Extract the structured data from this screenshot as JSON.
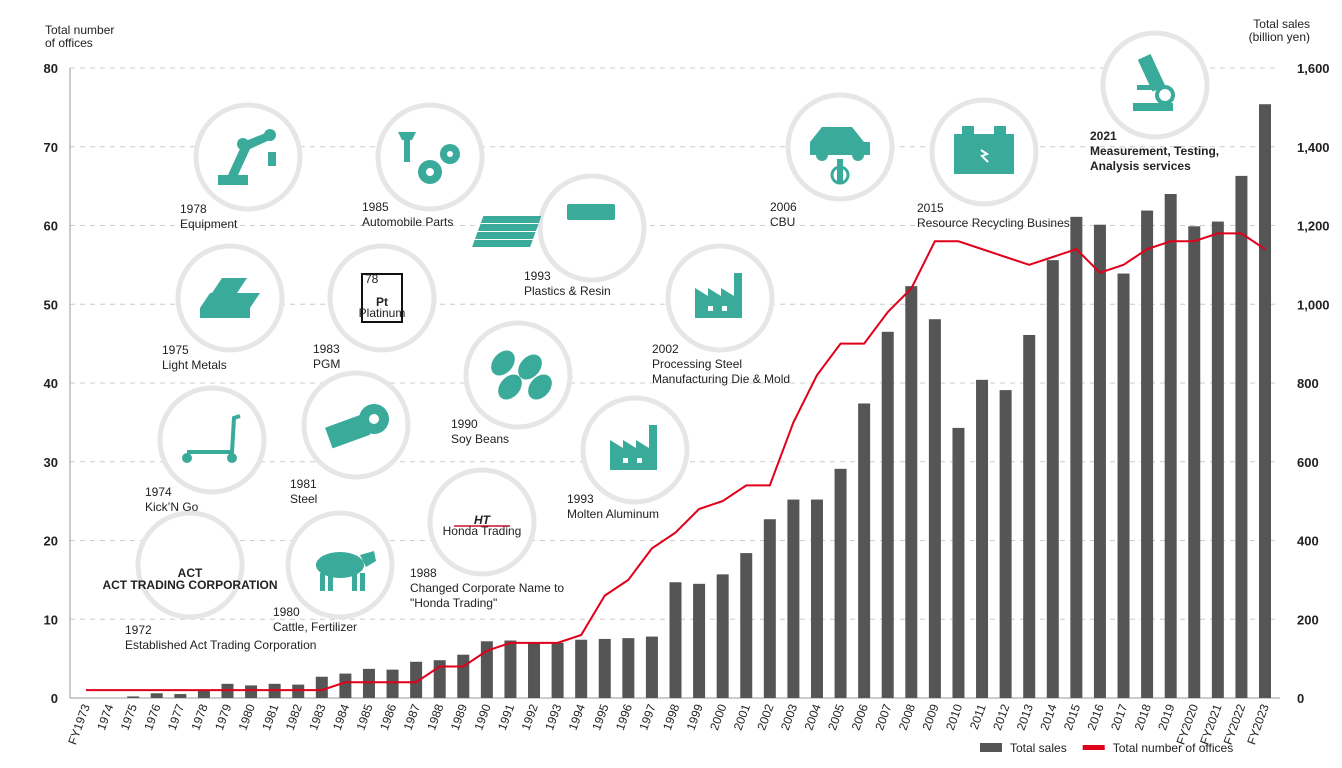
{
  "chart_data": {
    "type": "bar-line",
    "y_label": [
      "Total number",
      "of offices"
    ],
    "y2_label": [
      "Total sales",
      "(billion yen)"
    ],
    "categories": [
      "FY1973",
      "1974",
      "1975",
      "1976",
      "1977",
      "1978",
      "1979",
      "1980",
      "1981",
      "1982",
      "1983",
      "1984",
      "1985",
      "1986",
      "1987",
      "1988",
      "1989",
      "1990",
      "1991",
      "1992",
      "1993",
      "1994",
      "1995",
      "1996",
      "1997",
      "1998",
      "1999",
      "2000",
      "2001",
      "2002",
      "2003",
      "2004",
      "2005",
      "2006",
      "2007",
      "2008",
      "2009",
      "2010",
      "2011",
      "2012",
      "2013",
      "2014",
      "2015",
      "2016",
      "2017",
      "2018",
      "2019",
      "FY2020",
      "FY2021",
      "FY2022",
      "FY2023"
    ],
    "series": [
      {
        "name": "Total sales",
        "color": "#555555",
        "type": "bar",
        "axis": "y2",
        "values": [
          0,
          0,
          4,
          12,
          10,
          18,
          36,
          32,
          36,
          34,
          54,
          62,
          74,
          72,
          92,
          96,
          110,
          144,
          146,
          142,
          140,
          148,
          150,
          152,
          156,
          294,
          290,
          314,
          368,
          454,
          504,
          504,
          582,
          748,
          930,
          1046,
          962,
          686,
          808,
          782,
          922,
          1112,
          1222,
          1202,
          1078,
          1238,
          1280,
          1198,
          1210,
          1326,
          1508
        ]
      },
      {
        "name": "Total number of offices",
        "color": "#e0001a",
        "type": "line",
        "axis": "y",
        "values": [
          1,
          1,
          1,
          1,
          1,
          1,
          1,
          1,
          1,
          1,
          1,
          2,
          2,
          2,
          2,
          4,
          4,
          6,
          7,
          7,
          7,
          8,
          13,
          15,
          19,
          21,
          24,
          25,
          27,
          27,
          35,
          41,
          45,
          45,
          49,
          52,
          58,
          58,
          57,
          56,
          55,
          56,
          57,
          54,
          55,
          57,
          58,
          58,
          59,
          59,
          57
        ]
      }
    ],
    "ylim": [
      0,
      80
    ],
    "yticks": [
      0,
      10,
      20,
      30,
      40,
      50,
      60,
      70,
      80
    ],
    "y2lim": [
      0,
      1600
    ],
    "y2ticks": [
      0,
      200,
      400,
      600,
      800,
      {
        "value": 1000,
        "label": "1,000"
      },
      {
        "value": 1200,
        "label": "1,200"
      },
      {
        "value": 1400,
        "label": "1,400"
      },
      {
        "value": 1600,
        "label": "1,600"
      }
    ],
    "grid": true,
    "legend": "bottom-right",
    "annotations": [
      {
        "year": "1972",
        "label": [
          "Established Act Trading Corporation"
        ],
        "icon_text": [
          "ACT",
          "ACT TRADING CORPORATION"
        ]
      },
      {
        "year": "1974",
        "label": [
          "Kick’N Go"
        ]
      },
      {
        "year": "1975",
        "label": [
          "Light Metals"
        ]
      },
      {
        "year": "1978",
        "label": [
          "Equipment"
        ]
      },
      {
        "year": "1980",
        "label": [
          "Cattle, Fertilizer"
        ]
      },
      {
        "year": "1981",
        "label": [
          "Steel"
        ]
      },
      {
        "year": "1983",
        "label": [
          "PGM"
        ],
        "icon_text": [
          "78",
          "Pt",
          "Platinum"
        ]
      },
      {
        "year": "1985",
        "label": [
          "Automobile Parts"
        ]
      },
      {
        "year": "1988",
        "label": [
          "Changed Corporate Name to",
          "\"Honda Trading\""
        ],
        "icon_text": [
          "HT",
          "Honda Trading"
        ]
      },
      {
        "year": "1990",
        "label": [
          "Soy Beans"
        ]
      },
      {
        "year": "1993",
        "label": [
          "Plastics & Resin"
        ]
      },
      {
        "year": "1993",
        "label": [
          "Molten Aluminum"
        ]
      },
      {
        "year": "2002",
        "label": [
          "Processing Steel",
          "Manufacturing Die & Mold"
        ]
      },
      {
        "year": "2006",
        "label": [
          "CBU"
        ]
      },
      {
        "year": "2015",
        "label": [
          "Resource Recycling Business"
        ]
      },
      {
        "year": "2021",
        "label": [
          "Measurement, Testing,",
          "Analysis services"
        ]
      }
    ]
  }
}
